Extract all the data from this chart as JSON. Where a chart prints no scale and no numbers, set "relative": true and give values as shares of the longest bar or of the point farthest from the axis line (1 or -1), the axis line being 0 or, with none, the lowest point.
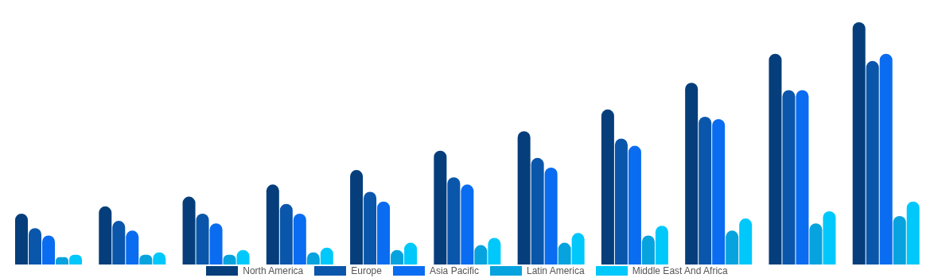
{
  "chart_data": {
    "type": "bar",
    "relative": true,
    "legend": "bottom",
    "grid": false,
    "categories": [
      null,
      null,
      null,
      null,
      null,
      null,
      null,
      null,
      null,
      null,
      null
    ],
    "series": [
      {
        "name": "North America",
        "color": "#053e7b",
        "values": [
          0.21,
          0.24,
          0.28,
          0.33,
          0.39,
          0.47,
          0.55,
          0.64,
          0.75,
          0.87,
          1
        ]
      },
      {
        "name": "Europe",
        "color": "#0a56ab",
        "values": [
          0.15,
          0.18,
          0.21,
          0.25,
          0.3,
          0.36,
          0.44,
          0.52,
          0.61,
          0.72,
          0.84
        ]
      },
      {
        "name": "Asia Pacific",
        "color": "#0a6cf0",
        "values": [
          0.12,
          0.14,
          0.17,
          0.21,
          0.26,
          0.33,
          0.4,
          0.49,
          0.6,
          0.72,
          0.87
        ]
      },
      {
        "name": "Latin America",
        "color": "#06a3de",
        "values": [
          0.03,
          0.04,
          0.04,
          0.05,
          0.06,
          0.08,
          0.09,
          0.12,
          0.14,
          0.17,
          0.2
        ]
      },
      {
        "name": "Middle East And Africa",
        "color": "#00c8fb",
        "values": [
          0.04,
          0.05,
          0.06,
          0.07,
          0.09,
          0.11,
          0.13,
          0.16,
          0.19,
          0.22,
          0.26
        ]
      }
    ]
  }
}
